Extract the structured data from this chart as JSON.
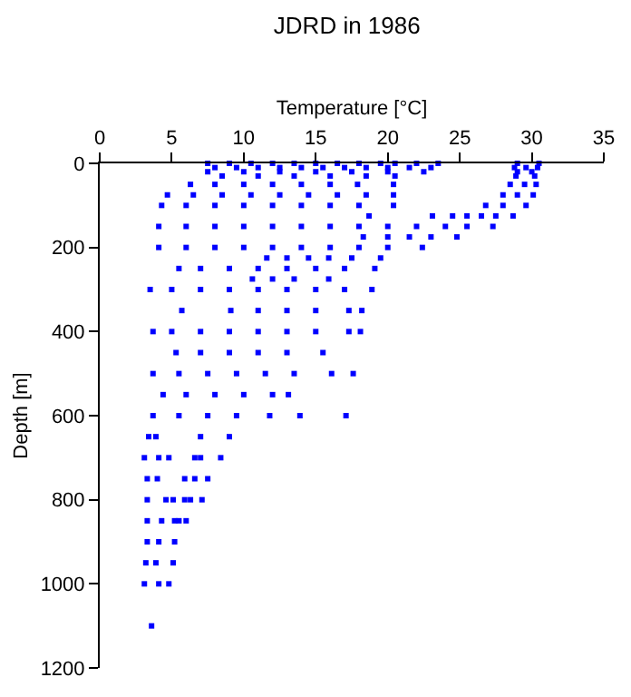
{
  "chart_data": {
    "type": "scatter",
    "title": "JDRD in 1986",
    "xlabel": "Temperature [°C]",
    "ylabel": "Depth [m]",
    "xlim": [
      0,
      35
    ],
    "xticks": [
      0,
      5,
      10,
      15,
      20,
      25,
      30,
      35
    ],
    "ylim": [
      1200,
      0
    ],
    "yticks": [
      0,
      200,
      400,
      600,
      800,
      1000,
      1200
    ],
    "marker": "square",
    "grid": false,
    "series": [
      {
        "color": "#0000ff",
        "x": [
          7.5,
          9,
          10.5,
          12,
          13.5,
          15,
          16.5,
          18,
          19.5,
          20.5,
          22,
          23.5,
          29,
          30.5,
          8,
          9.5,
          11,
          12.5,
          14,
          15.5,
          17,
          18.5,
          20,
          21.5,
          23,
          28.8,
          29.6,
          30.4,
          7.5,
          10,
          12.5,
          15,
          17.5,
          20,
          22.5,
          29,
          30,
          8.5,
          11,
          13.5,
          16,
          18.5,
          20.5,
          28.9,
          30.2,
          6.3,
          8,
          10,
          12,
          14,
          16,
          17.9,
          20.4,
          28.5,
          29.5,
          30.3,
          4.7,
          6.5,
          8.5,
          10.5,
          12.5,
          14.5,
          16.5,
          18.5,
          20.4,
          28,
          29,
          30.1,
          4.3,
          6,
          8,
          10,
          12,
          14,
          16,
          18,
          20.4,
          26.8,
          28,
          29.6,
          18.7,
          23.1,
          24.5,
          25.5,
          26.5,
          27.5,
          28.7,
          4.1,
          6,
          8,
          10,
          12,
          14,
          16,
          18,
          20,
          22,
          24,
          25.5,
          27.3,
          18.3,
          20,
          21.5,
          23,
          24.8,
          4.1,
          6,
          8,
          10,
          12,
          14,
          16,
          18,
          20,
          22.4,
          11.6,
          13,
          14.5,
          15.9,
          17.5,
          19.5,
          5.5,
          7,
          9,
          11,
          13,
          15,
          17,
          19.1,
          10.6,
          12,
          13.5,
          15.9,
          3.5,
          5,
          7,
          9,
          11,
          13,
          15,
          17,
          18.9,
          5.7,
          9.1,
          11,
          13,
          15,
          17.3,
          18.2,
          3.7,
          5,
          7,
          9,
          11,
          13,
          15,
          17.3,
          18.1,
          5.3,
          7,
          9,
          11,
          13,
          15.5,
          3.7,
          5.5,
          7.5,
          9.5,
          11.5,
          13.5,
          16.1,
          17.6,
          4.4,
          6,
          8,
          10,
          12,
          13.1,
          3.7,
          5.5,
          7.5,
          9.5,
          11.8,
          13.9,
          17.1,
          3.4,
          3.9,
          7,
          9,
          3.1,
          4.1,
          4.8,
          6.6,
          7,
          8.4,
          3.3,
          4,
          5.9,
          6.6,
          7.5,
          3.3,
          4.6,
          5.1,
          5.9,
          6.3,
          7.1,
          3.3,
          4.3,
          5.2,
          5.5,
          6,
          3.3,
          4.1,
          5.2,
          3.2,
          3.9,
          5.1,
          3.1,
          4.1,
          4.8,
          3.6
        ],
        "values": [
          0,
          0,
          0,
          0,
          0,
          0,
          0,
          0,
          0,
          0,
          0,
          0,
          0,
          0,
          10,
          10,
          10,
          10,
          10,
          10,
          10,
          10,
          10,
          10,
          10,
          10,
          10,
          10,
          20,
          20,
          20,
          20,
          20,
          20,
          20,
          20,
          20,
          30,
          30,
          30,
          30,
          30,
          30,
          30,
          30,
          50,
          50,
          50,
          50,
          50,
          50,
          50,
          50,
          50,
          50,
          50,
          75,
          75,
          75,
          75,
          75,
          75,
          75,
          75,
          75,
          75,
          75,
          75,
          100,
          100,
          100,
          100,
          100,
          100,
          100,
          100,
          100,
          100,
          100,
          100,
          125,
          125,
          125,
          125,
          125,
          125,
          125,
          150,
          150,
          150,
          150,
          150,
          150,
          150,
          150,
          150,
          150,
          150,
          150,
          150,
          175,
          175,
          175,
          175,
          175,
          200,
          200,
          200,
          200,
          200,
          200,
          200,
          200,
          200,
          200,
          225,
          225,
          225,
          225,
          225,
          225,
          250,
          250,
          250,
          250,
          250,
          250,
          250,
          250,
          275,
          275,
          275,
          275,
          300,
          300,
          300,
          300,
          300,
          300,
          300,
          300,
          300,
          350,
          350,
          350,
          350,
          350,
          350,
          350,
          400,
          400,
          400,
          400,
          400,
          400,
          400,
          400,
          400,
          450,
          450,
          450,
          450,
          450,
          450,
          500,
          500,
          500,
          500,
          500,
          500,
          500,
          500,
          550,
          550,
          550,
          550,
          550,
          550,
          600,
          600,
          600,
          600,
          600,
          600,
          600,
          650,
          650,
          650,
          650,
          700,
          700,
          700,
          700,
          700,
          700,
          750,
          750,
          750,
          750,
          750,
          800,
          800,
          800,
          800,
          800,
          800,
          850,
          850,
          850,
          850,
          850,
          900,
          900,
          900,
          950,
          950,
          950,
          1000,
          1000,
          1000,
          1100
        ]
      }
    ]
  }
}
